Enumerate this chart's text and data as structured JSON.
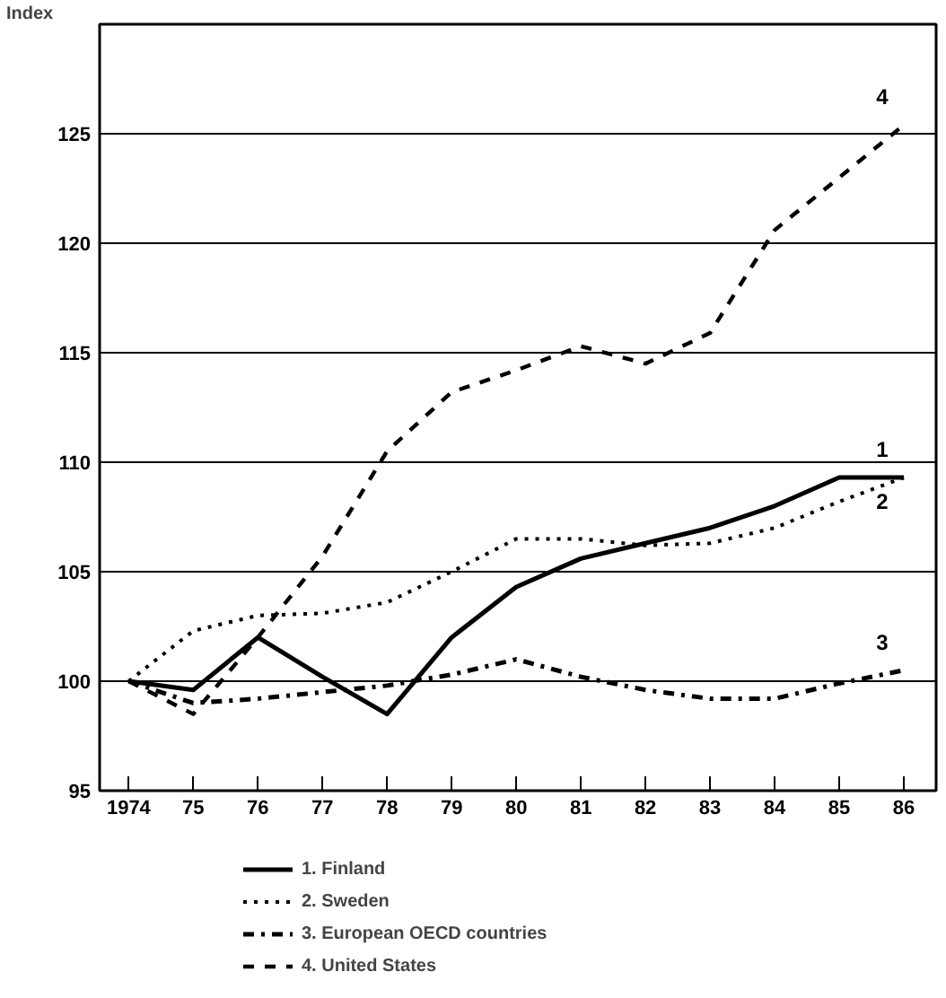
{
  "chart_data": {
    "type": "line",
    "ylabel": "Index",
    "x": [
      1974,
      1975,
      1976,
      1977,
      1978,
      1979,
      1980,
      1981,
      1982,
      1983,
      1984,
      1985,
      1986
    ],
    "xlim": [
      1973.55,
      1986.5
    ],
    "xticks": [
      {
        "value": 1974,
        "label": "1974"
      },
      {
        "value": 1975,
        "label": "75"
      },
      {
        "value": 1976,
        "label": "76"
      },
      {
        "value": 1977,
        "label": "77"
      },
      {
        "value": 1978,
        "label": "78"
      },
      {
        "value": 1979,
        "label": "79"
      },
      {
        "value": 1980,
        "label": "80"
      },
      {
        "value": 1981,
        "label": "81"
      },
      {
        "value": 1982,
        "label": "82"
      },
      {
        "value": 1983,
        "label": "83"
      },
      {
        "value": 1984,
        "label": "84"
      },
      {
        "value": 1985,
        "label": "85"
      },
      {
        "value": 1986,
        "label": "86"
      }
    ],
    "ylim": [
      95,
      130
    ],
    "yticks": [
      95,
      100,
      105,
      110,
      115,
      120,
      125
    ],
    "grid": "y",
    "legend": "bottom",
    "marker": "none",
    "series": [
      {
        "name": "1. Finland",
        "color": "#000000",
        "line_style": "solid",
        "values": [
          100,
          99.6,
          102.0,
          100.2,
          98.5,
          102.0,
          104.3,
          105.6,
          106.3,
          107.0,
          108.0,
          109.3,
          109.3
        ]
      },
      {
        "name": "2. Sweden",
        "color": "#000000",
        "line_style": "dotted",
        "values": [
          100,
          102.3,
          103.0,
          103.1,
          103.6,
          105.0,
          106.5,
          106.5,
          106.2,
          106.3,
          107.0,
          108.2,
          109.3
        ]
      },
      {
        "name": "3. European OECD countries",
        "color": "#000000",
        "line_style": "dashdot",
        "values": [
          100,
          99.0,
          99.2,
          99.5,
          99.8,
          100.3,
          101.0,
          100.2,
          99.6,
          99.2,
          99.2,
          99.9,
          100.5
        ]
      },
      {
        "name": "4. United States",
        "color": "#000000",
        "line_style": "dashed",
        "values": [
          100,
          98.5,
          102.0,
          105.7,
          110.5,
          113.2,
          114.2,
          115.3,
          114.5,
          115.9,
          120.6,
          123.0,
          125.4
        ]
      }
    ],
    "annotations": [
      "1",
      "2",
      "3",
      "4"
    ]
  }
}
